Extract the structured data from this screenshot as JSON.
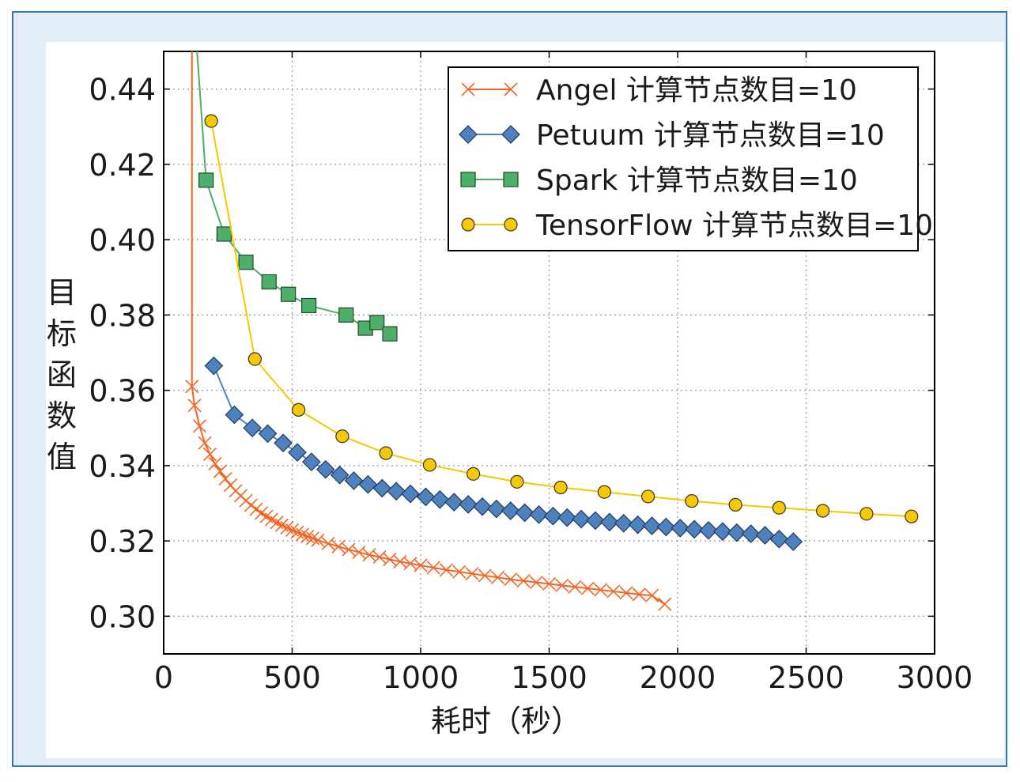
{
  "chart_data": {
    "type": "line",
    "xlabel": "耗时（秒）",
    "ylabel": "目标函数值",
    "xlim": [
      0,
      3000
    ],
    "ylim": [
      0.29,
      0.45
    ],
    "xticks": [
      "0",
      "500",
      "1000",
      "1500",
      "2000",
      "2500",
      "3000"
    ],
    "yticks": [
      "0.30",
      "0.32",
      "0.34",
      "0.36",
      "0.38",
      "0.40",
      "0.42",
      "0.44"
    ],
    "grid": true,
    "legend_position": "top-right",
    "series": [
      {
        "name": "Angel 计算节点数目=10",
        "color": "#f26522",
        "marker": "x",
        "x": [
          110,
          120,
          140,
          160,
          180,
          200,
          220,
          240,
          260,
          280,
          300,
          320,
          340,
          360,
          380,
          400,
          420,
          440,
          460,
          480,
          500,
          520,
          540,
          560,
          580,
          600,
          640,
          680,
          720,
          760,
          800,
          840,
          880,
          920,
          960,
          1000,
          1050,
          1100,
          1150,
          1200,
          1250,
          1300,
          1350,
          1400,
          1450,
          1500,
          1550,
          1600,
          1650,
          1700,
          1750,
          1800,
          1850,
          1900,
          1950
        ],
        "y": [
          0.361,
          0.356,
          0.3505,
          0.346,
          0.343,
          0.3405,
          0.3385,
          0.3365,
          0.3348,
          0.3333,
          0.332,
          0.3307,
          0.3295,
          0.3284,
          0.3274,
          0.3265,
          0.3257,
          0.3249,
          0.3242,
          0.3235,
          0.3229,
          0.3223,
          0.3217,
          0.3212,
          0.3207,
          0.3202,
          0.3193,
          0.3185,
          0.3177,
          0.317,
          0.3163,
          0.3157,
          0.3151,
          0.3145,
          0.314,
          0.3135,
          0.3129,
          0.3123,
          0.3118,
          0.3113,
          0.3108,
          0.3103,
          0.3098,
          0.3094,
          0.309,
          0.3086,
          0.3082,
          0.3078,
          0.3074,
          0.307,
          0.3066,
          0.3062,
          0.3058,
          0.3055,
          0.3032
        ]
      },
      {
        "name": "Petuum 计算节点数目=10",
        "color": "#4f81bd",
        "marker": "diamond",
        "x": [
          195,
          275,
          345,
          405,
          465,
          520,
          575,
          630,
          685,
          740,
          795,
          850,
          905,
          960,
          1020,
          1075,
          1130,
          1185,
          1240,
          1295,
          1350,
          1405,
          1460,
          1515,
          1570,
          1625,
          1680,
          1735,
          1790,
          1845,
          1900,
          1955,
          2010,
          2065,
          2120,
          2175,
          2230,
          2285,
          2340,
          2395,
          2450
        ],
        "y": [
          0.3665,
          0.3535,
          0.35,
          0.3485,
          0.346,
          0.3435,
          0.341,
          0.339,
          0.3375,
          0.336,
          0.335,
          0.334,
          0.3332,
          0.3325,
          0.3317,
          0.331,
          0.3303,
          0.3297,
          0.3291,
          0.3285,
          0.328,
          0.3275,
          0.327,
          0.3266,
          0.3262,
          0.3258,
          0.3254,
          0.325,
          0.3247,
          0.3243,
          0.324,
          0.3237,
          0.3234,
          0.3231,
          0.3228,
          0.3225,
          0.3222,
          0.3219,
          0.3215,
          0.3205,
          0.3198
        ]
      },
      {
        "name": "Spark 计算节点数目=10",
        "color": "#4daf6a",
        "marker": "square",
        "x": [
          130,
          165,
          235,
          320,
          410,
          485,
          565,
          710,
          785,
          830,
          880
        ],
        "y": [
          0.45,
          0.4158,
          0.4015,
          0.394,
          0.3888,
          0.3855,
          0.3825,
          0.38,
          0.3765,
          0.378,
          0.375
        ]
      },
      {
        "name": "TensorFlow 计算节点数目=10",
        "color": "#f5c800",
        "marker": "circle",
        "x": [
          185,
          355,
          525,
          695,
          865,
          1035,
          1205,
          1375,
          1545,
          1715,
          1885,
          2055,
          2225,
          2395,
          2565,
          2735,
          2910
        ],
        "y": [
          0.4315,
          0.3683,
          0.3548,
          0.3478,
          0.3433,
          0.3402,
          0.3378,
          0.3357,
          0.3342,
          0.333,
          0.3318,
          0.3306,
          0.3296,
          0.3288,
          0.328,
          0.3272,
          0.3265
        ]
      }
    ]
  }
}
